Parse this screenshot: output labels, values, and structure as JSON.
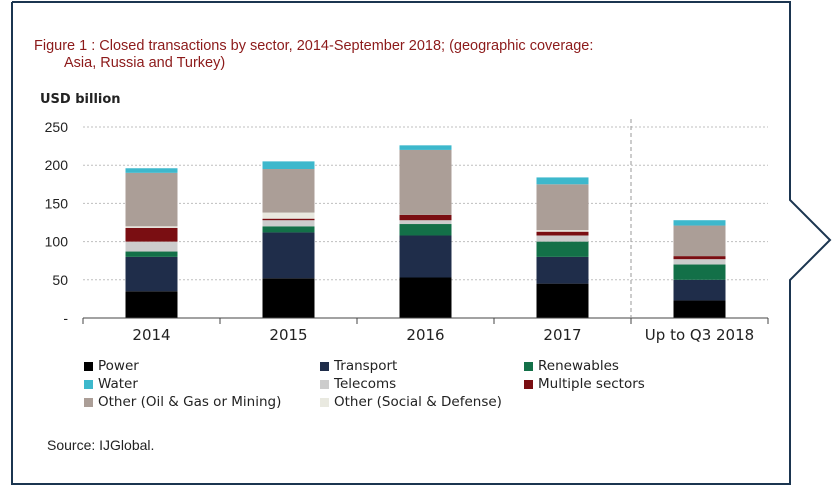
{
  "figure": {
    "title_line1": "Figure 1 : Closed transactions by sector, 2014-September 2018; (geographic coverage:",
    "title_line2": "Asia, Russia and Turkey)",
    "unit_label": "USD billion",
    "source": "Source: IJGlobal."
  },
  "colors": {
    "frame": "#1b3550",
    "title": "#8c1a1a",
    "Power": "#000000",
    "Transport": "#1f2d4a",
    "Renewables": "#137048",
    "Water": "#3db8cc",
    "Telecoms": "#cccccc",
    "Multiple sectors": "#7a0e12",
    "Other (Oil & Gas or Mining)": "#ab9e97",
    "Other (Social & Defense)": "#e9e9e0"
  },
  "chart_data": {
    "type": "bar",
    "stacked": true,
    "categories": [
      "2014",
      "2015",
      "2016",
      "2017",
      "Up to Q3 2018"
    ],
    "ylabel": "USD billion",
    "ylim": [
      0,
      250
    ],
    "yticks": [
      "-",
      "50",
      "100",
      "150",
      "200",
      "250"
    ],
    "grid": true,
    "legend_placement": "bottom",
    "series": [
      {
        "name": "Power",
        "values": [
          35,
          52,
          53,
          45,
          23
        ]
      },
      {
        "name": "Transport",
        "values": [
          45,
          60,
          55,
          35,
          27
        ]
      },
      {
        "name": "Renewables",
        "values": [
          7,
          8,
          15,
          20,
          20
        ]
      },
      {
        "name": "Telecoms",
        "values": [
          13,
          8,
          5,
          8,
          7
        ]
      },
      {
        "name": "Multiple sectors",
        "values": [
          18,
          2,
          7,
          5,
          4
        ]
      },
      {
        "name": "Other (Social & Defense)",
        "values": [
          2,
          8,
          0,
          2,
          0
        ]
      },
      {
        "name": "Other (Oil & Gas or Mining)",
        "values": [
          70,
          57,
          85,
          60,
          40
        ]
      },
      {
        "name": "Water",
        "values": [
          6,
          10,
          6,
          9,
          7
        ]
      }
    ],
    "legend_order": [
      "Power",
      "Transport",
      "Renewables",
      "Water",
      "Telecoms",
      "Multiple sectors",
      "Other (Oil & Gas or Mining)",
      "Other (Social & Defense)"
    ]
  }
}
